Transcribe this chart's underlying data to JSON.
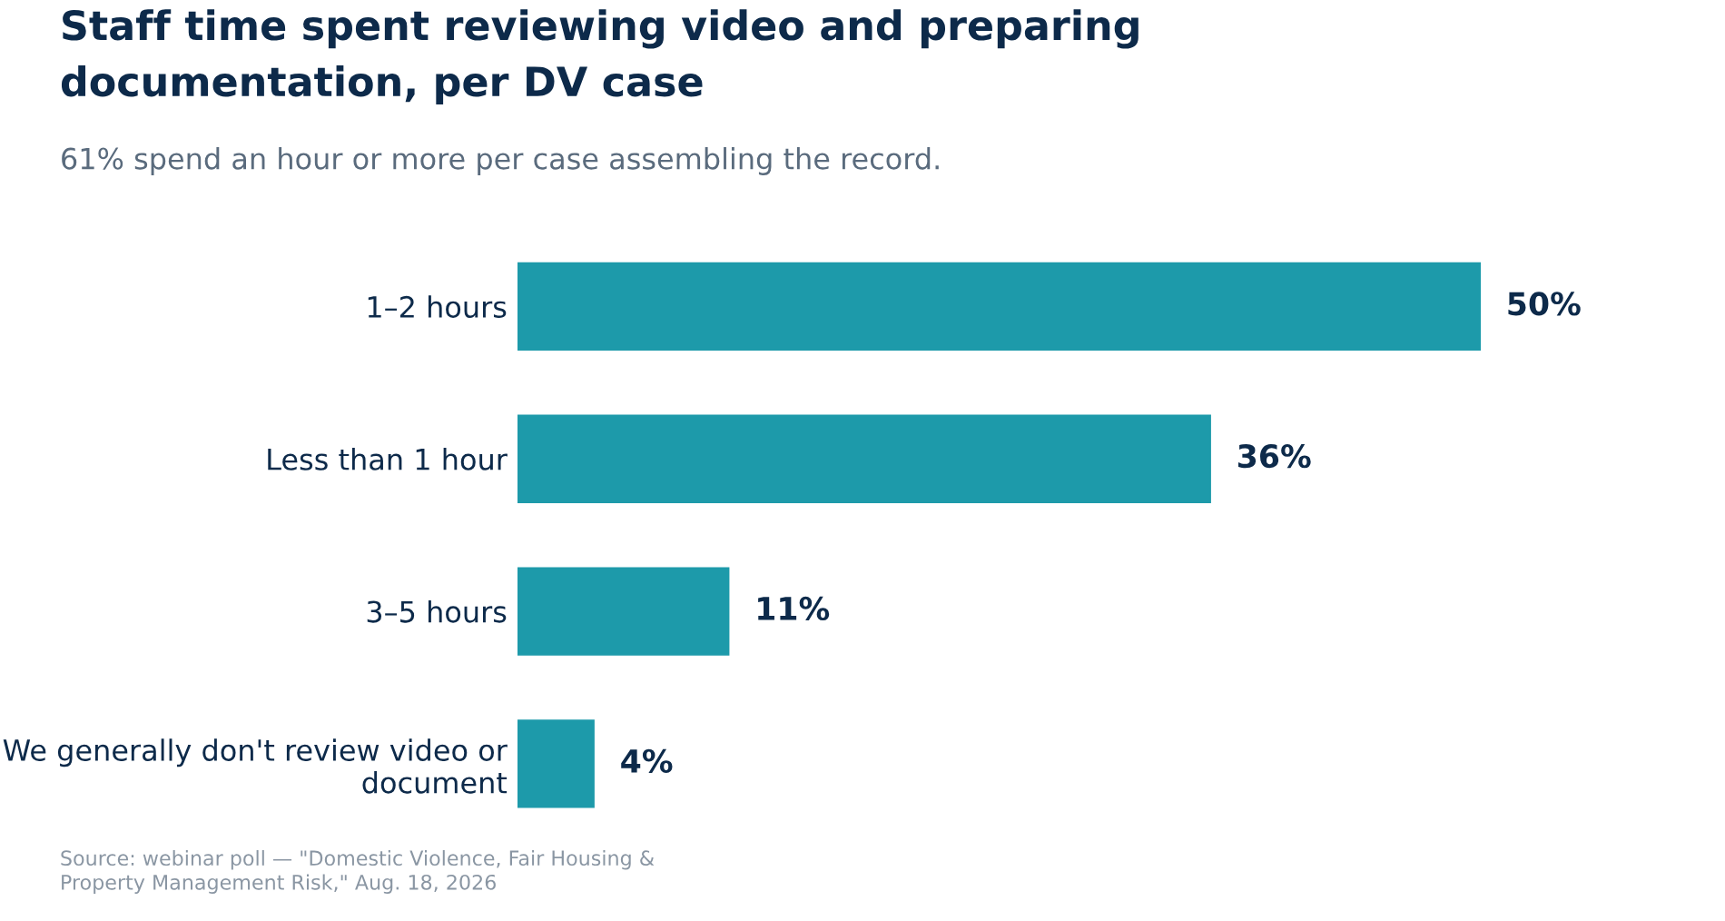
{
  "chart_data": {
    "type": "bar",
    "orientation": "horizontal",
    "title": "Staff time spent reviewing video and preparing\ndocumentation, per DV case",
    "subtitle": "61% spend an hour or more per case assembling the record.",
    "categories": [
      "1–2 hours",
      "Less than 1 hour",
      "3–5 hours",
      "We generally don't review video or\ndocument"
    ],
    "values": [
      50,
      36,
      11,
      4
    ],
    "value_labels": [
      "50%",
      "36%",
      "11%",
      "4%"
    ],
    "color": "#1d9aaa",
    "grid": false,
    "legend": false,
    "annotations": [
      "Source: webinar poll — \"Domestic Violence, Fair Housing &\nProperty Management Risk,\" Aug. 18, 2026"
    ]
  }
}
